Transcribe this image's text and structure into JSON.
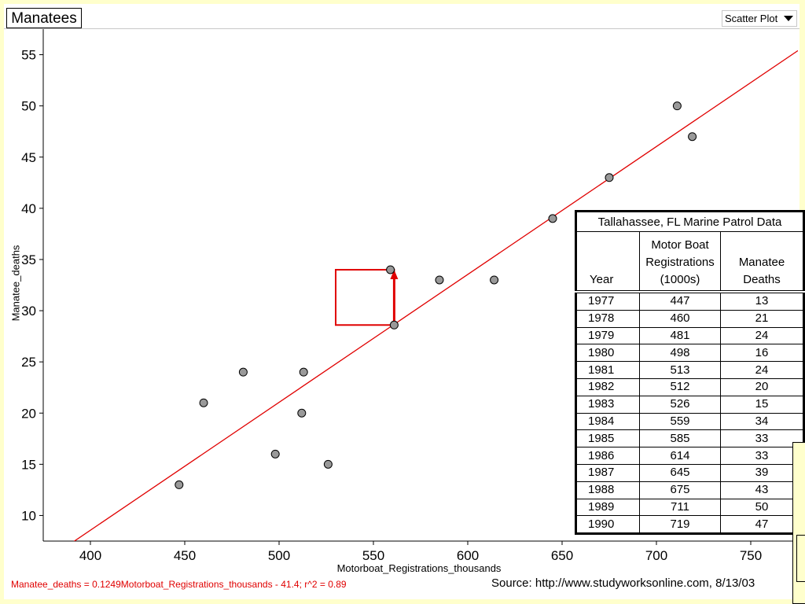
{
  "header": {
    "title": "Manatees",
    "plot_type": "Scatter Plot"
  },
  "equation": "Manatee_deaths = 0.1249Motorboat_Registrations_thousands - 41.4; r^2 = 0.89",
  "source": "Source: http://www.studyworksonline.com, 8/13/03",
  "colors": {
    "fit_line": "#e00000",
    "annotation": "#e00000",
    "point_fill": "#999999",
    "background": "#ffffcc"
  },
  "chart_data": {
    "type": "scatter",
    "title": "Manatees",
    "xlabel": "Motorboat_Registrations_thousands",
    "ylabel": "Manatee_deaths",
    "xlim": [
      375,
      775
    ],
    "ylim": [
      7.5,
      57.5
    ],
    "xticks": [
      400,
      450,
      500,
      550,
      600,
      650,
      700,
      750
    ],
    "yticks": [
      10,
      15,
      20,
      25,
      30,
      35,
      40,
      45,
      50,
      55
    ],
    "grid": false,
    "points": [
      {
        "x": 447,
        "y": 13
      },
      {
        "x": 460,
        "y": 21
      },
      {
        "x": 481,
        "y": 24
      },
      {
        "x": 498,
        "y": 16
      },
      {
        "x": 513,
        "y": 24
      },
      {
        "x": 512,
        "y": 20
      },
      {
        "x": 526,
        "y": 15
      },
      {
        "x": 559,
        "y": 34
      },
      {
        "x": 585,
        "y": 33
      },
      {
        "x": 614,
        "y": 33
      },
      {
        "x": 645,
        "y": 39
      },
      {
        "x": 675,
        "y": 43
      },
      {
        "x": 711,
        "y": 50
      },
      {
        "x": 719,
        "y": 47
      },
      {
        "x": 561,
        "y": 28.6
      }
    ],
    "fit_line": {
      "slope": 0.1249,
      "intercept": -41.4,
      "r2": 0.89
    },
    "residual_annotation": {
      "x": 561,
      "y_fit": 28.6,
      "y_actual": 34,
      "square_x_from": 530
    }
  },
  "table": {
    "title": "Tallahassee, FL Marine Patrol Data",
    "columns": [
      {
        "lines": [
          "Year"
        ]
      },
      {
        "lines": [
          "Motor Boat",
          "Registrations",
          "(1000s)"
        ]
      },
      {
        "lines": [
          "Manatee",
          "Deaths"
        ]
      }
    ],
    "rows": [
      [
        "1977",
        "447",
        "13"
      ],
      [
        "1978",
        "460",
        "21"
      ],
      [
        "1979",
        "481",
        "24"
      ],
      [
        "1980",
        "498",
        "16"
      ],
      [
        "1981",
        "513",
        "24"
      ],
      [
        "1982",
        "512",
        "20"
      ],
      [
        "1983",
        "526",
        "15"
      ],
      [
        "1984",
        "559",
        "34"
      ],
      [
        "1985",
        "585",
        "33"
      ],
      [
        "1986",
        "614",
        "33"
      ],
      [
        "1987",
        "645",
        "39"
      ],
      [
        "1988",
        "675",
        "43"
      ],
      [
        "1989",
        "711",
        "50"
      ],
      [
        "1990",
        "719",
        "47"
      ]
    ]
  }
}
